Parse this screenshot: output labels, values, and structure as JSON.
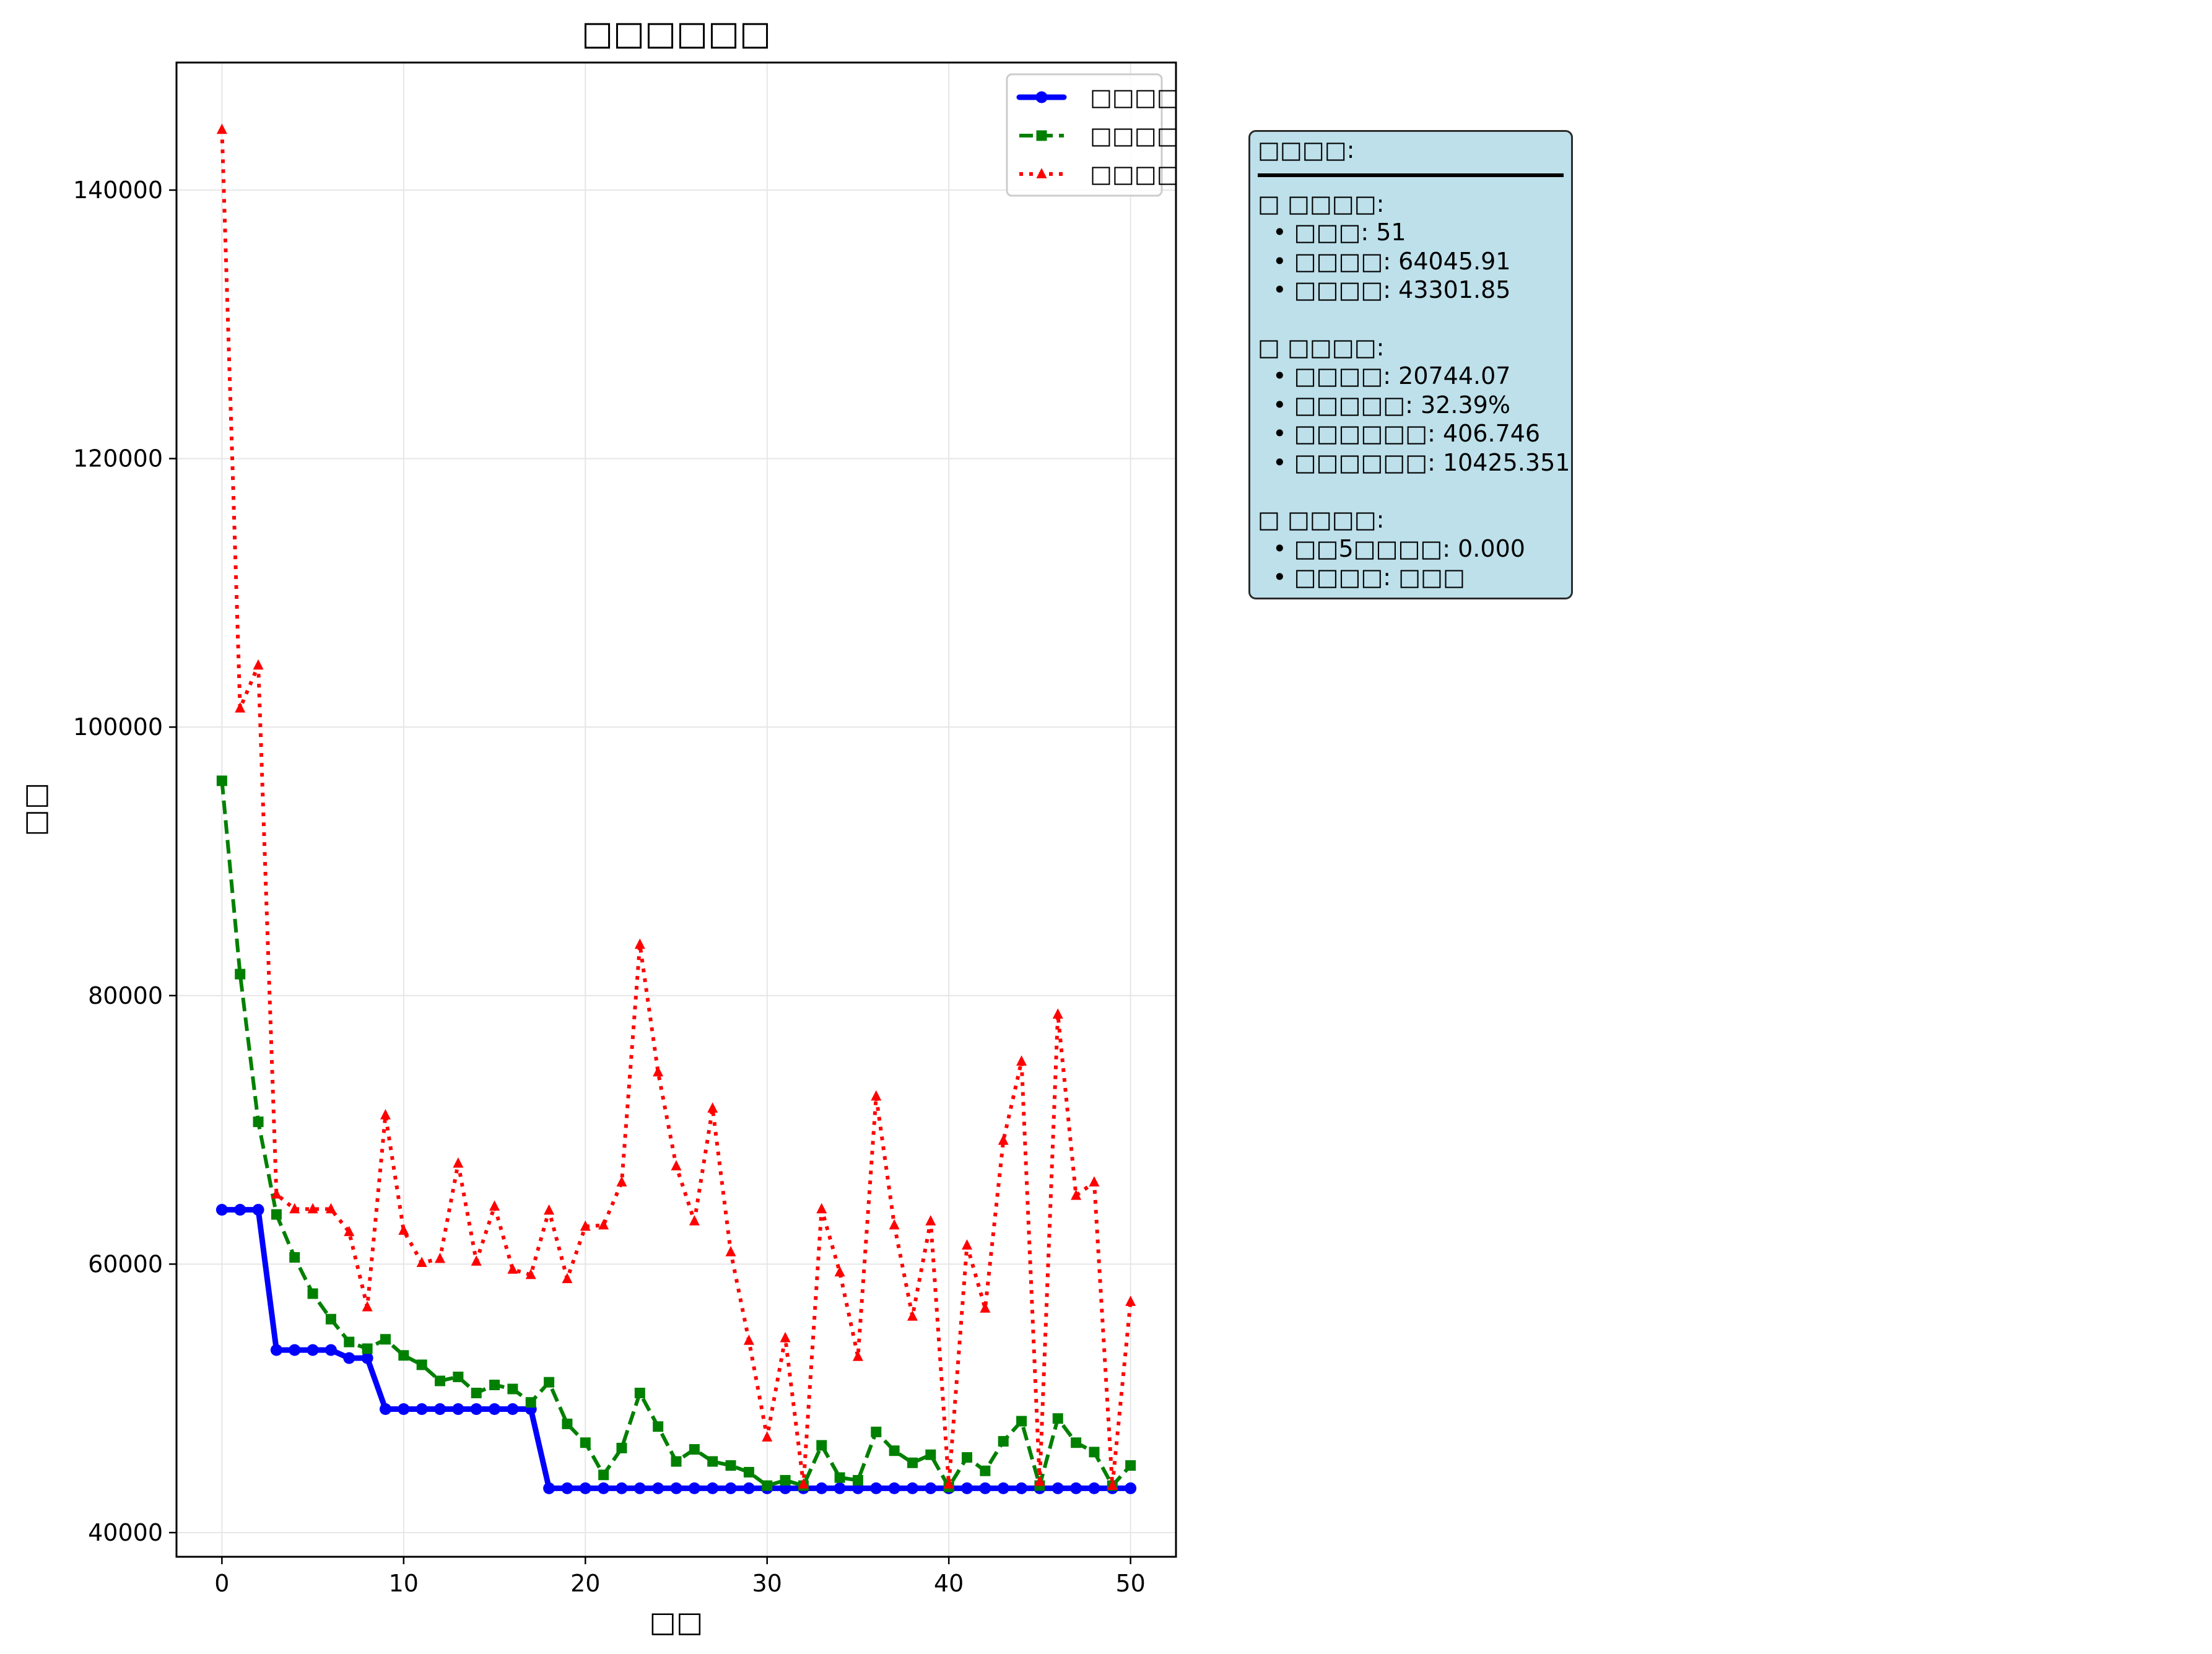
{
  "chart_data": {
    "type": "line",
    "title": "□□□□□□",
    "xlabel": "□□",
    "ylabel": "□□",
    "xlim": [
      -2.5,
      52.5
    ],
    "ylim": [
      38200,
      149500
    ],
    "x_ticks": [
      0,
      10,
      20,
      30,
      40,
      50
    ],
    "y_ticks": [
      40000,
      60000,
      80000,
      100000,
      120000,
      140000
    ],
    "x_tick_labels": [
      "0",
      "10",
      "20",
      "30",
      "40",
      "50"
    ],
    "y_tick_labels": [
      "40000",
      "60000",
      "80000",
      "100000",
      "120000",
      "140000"
    ],
    "grid": true,
    "legend_position": "top-right",
    "x": [
      0,
      1,
      2,
      3,
      4,
      5,
      6,
      7,
      8,
      9,
      10,
      11,
      12,
      13,
      14,
      15,
      16,
      17,
      18,
      19,
      20,
      21,
      22,
      23,
      24,
      25,
      26,
      27,
      28,
      29,
      30,
      31,
      32,
      33,
      34,
      35,
      36,
      37,
      38,
      39,
      40,
      41,
      42,
      43,
      44,
      45,
      46,
      47,
      48,
      49,
      50
    ],
    "series": [
      {
        "name": "□□□□",
        "color": "#0000ff",
        "style": "solid",
        "marker": "circle",
        "values": [
          64046,
          64046,
          64046,
          53600,
          53600,
          53600,
          53600,
          53000,
          53000,
          49200,
          49200,
          49200,
          49200,
          49200,
          49200,
          49200,
          49200,
          49200,
          43302,
          43302,
          43302,
          43302,
          43302,
          43302,
          43302,
          43302,
          43302,
          43302,
          43302,
          43302,
          43302,
          43302,
          43302,
          43302,
          43302,
          43302,
          43302,
          43302,
          43302,
          43302,
          43302,
          43302,
          43302,
          43302,
          43302,
          43302,
          43302,
          43302,
          43302,
          43302,
          43302
        ]
      },
      {
        "name": "□□□□",
        "color": "#008000",
        "style": "dashed",
        "marker": "square",
        "values": [
          96000,
          81600,
          70600,
          63700,
          60500,
          57800,
          55900,
          54200,
          53700,
          54400,
          53200,
          52500,
          51300,
          51600,
          50400,
          51000,
          50700,
          49700,
          51200,
          48100,
          46700,
          44300,
          46300,
          50400,
          47900,
          45300,
          46200,
          45300,
          45000,
          44500,
          43500,
          43900,
          43500,
          46500,
          44100,
          43900,
          47500,
          46100,
          45200,
          45800,
          43400,
          45600,
          44600,
          46800,
          48300,
          43500,
          48500,
          46700,
          46000,
          43500,
          45000
        ]
      },
      {
        "name": "□□□□",
        "color": "#ff0000",
        "style": "dotted",
        "marker": "triangle",
        "values": [
          144500,
          101400,
          104600,
          65200,
          64100,
          64100,
          64100,
          62400,
          56800,
          71100,
          62500,
          60100,
          60400,
          67500,
          60200,
          64300,
          59600,
          59200,
          64000,
          58900,
          62800,
          62900,
          66100,
          83800,
          74300,
          67300,
          63200,
          71600,
          60900,
          54300,
          47100,
          54500,
          43600,
          64100,
          59400,
          53100,
          72500,
          62900,
          56100,
          63200,
          43600,
          61400,
          56700,
          69200,
          75100,
          43800,
          78600,
          65100,
          66100,
          43500,
          57200
        ]
      }
    ]
  },
  "info_panel": {
    "title": "□□□□:",
    "sections": [
      {
        "header": "□ □□□□:",
        "items": [
          "  • □□□: 51",
          "  • □□□□: 64045.91",
          "  • □□□□: 43301.85"
        ]
      },
      {
        "header": "□ □□□□:",
        "items": [
          "  • □□□□: 20744.07",
          "  • □□□□□: 32.39%",
          "  • □□□□□□: 406.746",
          "  • □□□□□□: 10425.351"
        ]
      },
      {
        "header": "□ □□□□:",
        "items": [
          "  • □□5□□□□: 0.000",
          "  • □□□□: □□□"
        ]
      }
    ]
  }
}
